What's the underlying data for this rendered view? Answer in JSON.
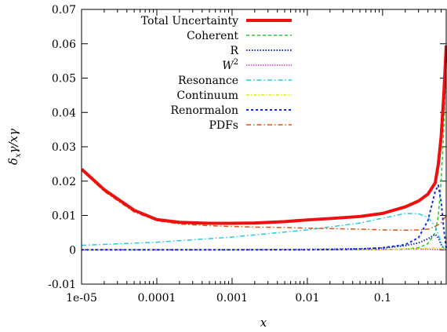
{
  "chart_data": {
    "type": "line",
    "xscale": "log",
    "xlim": [
      1e-05,
      0.7
    ],
    "ylim": [
      -0.01,
      0.07
    ],
    "xlabel": "x",
    "ylabel": "δ_x γ / x γ",
    "grid": false,
    "legend_position": "top-right",
    "xticks": [
      {
        "value": 1e-05,
        "label": "1e-05"
      },
      {
        "value": 0.0001,
        "label": "0.0001"
      },
      {
        "value": 0.001,
        "label": "0.001"
      },
      {
        "value": 0.01,
        "label": "0.01"
      },
      {
        "value": 0.1,
        "label": "0.1"
      }
    ],
    "yticks": [
      {
        "value": -0.01,
        "label": "-0.01"
      },
      {
        "value": 0,
        "label": "0"
      },
      {
        "value": 0.01,
        "label": "0.01"
      },
      {
        "value": 0.02,
        "label": "0.02"
      },
      {
        "value": 0.03,
        "label": "0.03"
      },
      {
        "value": 0.04,
        "label": "0.04"
      },
      {
        "value": 0.05,
        "label": "0.05"
      },
      {
        "value": 0.06,
        "label": "0.06"
      },
      {
        "value": 0.07,
        "label": "0.07"
      }
    ],
    "series": [
      {
        "name": "Total Uncertainty",
        "color": "#ee1010",
        "dash": "",
        "width": 4,
        "x": [
          1e-05,
          2e-05,
          5e-05,
          0.0001,
          0.0002,
          0.0005,
          0.001,
          0.002,
          0.005,
          0.01,
          0.02,
          0.05,
          0.1,
          0.2,
          0.3,
          0.4,
          0.5,
          0.55,
          0.6,
          0.65,
          0.7
        ],
        "y": [
          0.0235,
          0.0175,
          0.0115,
          0.0088,
          0.008,
          0.0077,
          0.0077,
          0.0078,
          0.0082,
          0.0087,
          0.0091,
          0.0097,
          0.0106,
          0.0125,
          0.0142,
          0.0162,
          0.0195,
          0.025,
          0.033,
          0.045,
          0.0595
        ]
      },
      {
        "name": "Coherent",
        "color": "#22cc22",
        "dash": "4 3",
        "width": 1.5,
        "x": [
          1e-05,
          0.001,
          0.01,
          0.1,
          0.2,
          0.3,
          0.4,
          0.5,
          0.55,
          0.6,
          0.65,
          0.7
        ],
        "y": [
          0,
          0,
          0,
          0.0001,
          0.0002,
          0.0006,
          0.0018,
          0.005,
          0.01,
          0.02,
          0.035,
          0.055
        ]
      },
      {
        "name": "R",
        "color": "#1a2ad0",
        "dash": "1.5 2",
        "width": 2,
        "x": [
          1e-05,
          0.001,
          0.01,
          0.05,
          0.1,
          0.2,
          0.3,
          0.4,
          0.5,
          0.55,
          0.6,
          0.65,
          0.7
        ],
        "y": [
          0,
          0,
          0.0001,
          0.0003,
          0.0005,
          0.0012,
          0.002,
          0.0032,
          0.0045,
          0.0035,
          0.0015,
          0.0003,
          0
        ]
      },
      {
        "name": "W^2",
        "color": "#cc33cc",
        "dash": "1.5 1.5",
        "width": 1.5,
        "x": [
          1e-05,
          0.01,
          0.1,
          0.3,
          0.5,
          0.7
        ],
        "y": [
          0,
          0,
          0.0001,
          0.0002,
          0.0001,
          0
        ]
      },
      {
        "name": "Resonance",
        "color": "#22ccdd",
        "dash": "6 3 1.5 3",
        "width": 1.5,
        "x": [
          1e-05,
          0.0001,
          0.001,
          0.01,
          0.05,
          0.1,
          0.2,
          0.3,
          0.4,
          0.5,
          0.55,
          0.6,
          0.65,
          0.7
        ],
        "y": [
          0.0013,
          0.0022,
          0.0037,
          0.0058,
          0.0078,
          0.0092,
          0.0106,
          0.0105,
          0.0095,
          0.0068,
          0.0045,
          0.002,
          0.0005,
          0
        ]
      },
      {
        "name": "Continuum",
        "color": "#e8e800",
        "dash": "4 2 1.5 2",
        "width": 1.5,
        "x": [
          1e-05,
          0.01,
          0.1,
          0.3,
          0.5,
          0.6,
          0.7
        ],
        "y": [
          0,
          0,
          0.0001,
          0.0003,
          0.0006,
          0.0004,
          0
        ]
      },
      {
        "name": "Renormalon",
        "color": "#1a2ad0",
        "dash": "3 3",
        "width": 2,
        "x": [
          1e-05,
          0.01,
          0.05,
          0.1,
          0.2,
          0.3,
          0.4,
          0.45,
          0.5,
          0.55,
          0.6,
          0.65,
          0.7
        ],
        "y": [
          0,
          0,
          0.0002,
          0.0006,
          0.0015,
          0.0035,
          0.0085,
          0.013,
          0.017,
          0.0188,
          0.014,
          0.006,
          0.0005
        ]
      },
      {
        "name": "PDFs",
        "color": "#e05010",
        "dash": "6 3 1.5 3",
        "width": 1.5,
        "x": [
          1e-05,
          2e-05,
          5e-05,
          0.0001,
          0.0002,
          0.0005,
          0.001,
          0.002,
          0.005,
          0.01,
          0.05,
          0.1,
          0.2,
          0.3,
          0.4,
          0.5,
          0.6,
          0.7
        ],
        "y": [
          0.0232,
          0.017,
          0.011,
          0.0085,
          0.0075,
          0.007,
          0.0068,
          0.0066,
          0.0065,
          0.0063,
          0.006,
          0.0058,
          0.0057,
          0.0058,
          0.006,
          0.0068,
          0.0078,
          0.01
        ]
      }
    ]
  }
}
